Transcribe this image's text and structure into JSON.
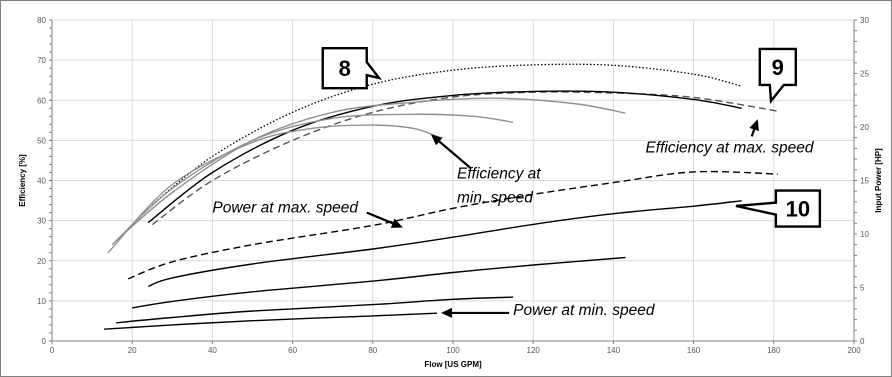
{
  "chart_data": {
    "type": "line",
    "xlabel": "Flow [US GPM]",
    "ylabel": "Efficiency [%]",
    "y2label": "Input Power [HP]",
    "xlim": [
      0,
      200
    ],
    "ylim": [
      0,
      80
    ],
    "y2lim": [
      0,
      30
    ],
    "x_ticks": [
      0,
      20,
      40,
      60,
      80,
      100,
      120,
      140,
      160,
      180,
      200
    ],
    "y_ticks": [
      0,
      10,
      20,
      30,
      40,
      50,
      60,
      70,
      80
    ],
    "y2_ticks": [
      0,
      5,
      10,
      15,
      20,
      25,
      30
    ],
    "grid": true,
    "series": [
      {
        "axis": "left",
        "style": "dotted",
        "color": "#000000",
        "x": [
          25,
          40,
          60,
          80,
          100,
          120,
          140,
          160,
          172
        ],
        "y": [
          34,
          46,
          57,
          64,
          67.5,
          68.8,
          68.7,
          66.5,
          63.5
        ]
      },
      {
        "axis": "left",
        "style": "dashed",
        "color": "#555555",
        "x": [
          25,
          40,
          60,
          80,
          100,
          120,
          140,
          160,
          181
        ],
        "y": [
          29,
          40,
          50,
          57,
          60.8,
          62,
          61.8,
          60.7,
          57.3
        ]
      },
      {
        "axis": "left",
        "style": "solid",
        "color": "#000000",
        "x": [
          24,
          40,
          60,
          80,
          100,
          120,
          140,
          160,
          172
        ],
        "y": [
          29.5,
          42,
          52.5,
          58.5,
          61.2,
          62.2,
          62,
          60.2,
          58
        ]
      },
      {
        "axis": "left",
        "style": "solid",
        "color": "#909090",
        "x": [
          16,
          30,
          50,
          70,
          90,
          110,
          130,
          143
        ],
        "y": [
          25,
          37,
          50,
          57,
          59.5,
          60.5,
          59.2,
          56.8
        ]
      },
      {
        "axis": "left",
        "style": "solid",
        "color": "#909090",
        "x": [
          15,
          30,
          50,
          70,
          90,
          105,
          115
        ],
        "y": [
          24,
          38,
          50,
          55.5,
          56.5,
          56,
          54.5
        ]
      },
      {
        "axis": "left",
        "style": "solid",
        "color": "#909090",
        "x": [
          14,
          30,
          50,
          65,
          80,
          90,
          96
        ],
        "y": [
          22,
          39,
          49.5,
          53,
          53.8,
          53,
          51
        ]
      },
      {
        "axis": "right",
        "style": "dashed",
        "color": "#000000",
        "x": [
          19,
          30,
          50,
          80,
          100,
          120,
          140,
          160,
          181
        ],
        "y": [
          5.8,
          7.4,
          9,
          10.8,
          12.4,
          13.7,
          14.8,
          15.8,
          15.6
        ]
      },
      {
        "axis": "right",
        "style": "solid",
        "color": "#000000",
        "x": [
          24,
          30,
          50,
          80,
          100,
          120,
          140,
          160,
          172
        ],
        "y": [
          5.1,
          5.9,
          7.2,
          8.6,
          9.7,
          10.9,
          11.9,
          12.6,
          13.1
        ]
      },
      {
        "axis": "right",
        "style": "solid",
        "color": "#000000",
        "x": [
          20,
          30,
          50,
          80,
          100,
          120,
          143
        ],
        "y": [
          3.1,
          3.7,
          4.6,
          5.6,
          6.4,
          7.1,
          7.8
        ]
      },
      {
        "axis": "right",
        "style": "solid",
        "color": "#000000",
        "x": [
          16,
          30,
          50,
          80,
          100,
          115
        ],
        "y": [
          1.7,
          2.2,
          2.8,
          3.4,
          3.9,
          4.1
        ]
      },
      {
        "axis": "right",
        "style": "solid",
        "color": "#000000",
        "x": [
          13,
          30,
          50,
          80,
          96
        ],
        "y": [
          1.1,
          1.5,
          1.9,
          2.35,
          2.6
        ]
      }
    ],
    "annotations": [
      {
        "text": "Efficiency at",
        "x": 101,
        "y": 40.5
      },
      {
        "text": "min. speed",
        "x": 101,
        "y": 34.5
      },
      {
        "text": "Efficiency at max. speed",
        "x": 148,
        "y": 47
      },
      {
        "text": "Power at max. speed",
        "x": 40,
        "y": 32
      },
      {
        "text": "Power at min. speed",
        "x": 115,
        "y": 6.5
      }
    ],
    "callouts": [
      {
        "label": "8",
        "x": 73,
        "y": 68
      },
      {
        "label": "9",
        "x": 181,
        "y": 68.3
      },
      {
        "label": "10",
        "x": 186,
        "y": 33
      }
    ]
  }
}
